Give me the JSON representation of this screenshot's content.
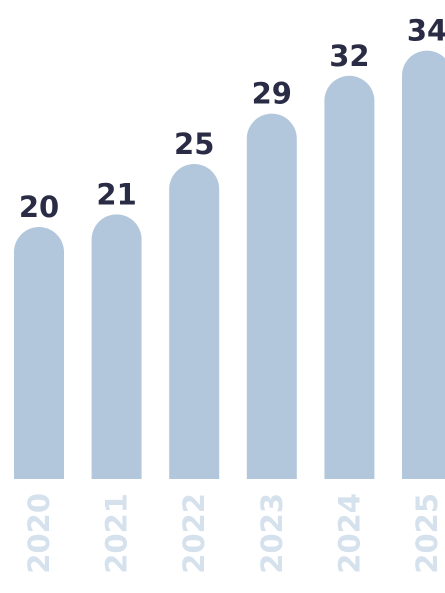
{
  "chart_data": {
    "type": "bar",
    "categories": [
      "2020",
      "2021",
      "2022",
      "2023",
      "2024",
      "2025"
    ],
    "values": [
      20,
      21,
      25,
      29,
      32,
      34
    ],
    "value_labels": [
      "20",
      "21",
      "25",
      "29",
      "32",
      "34"
    ],
    "title": "",
    "xlabel": "",
    "ylabel": "",
    "ylim": [
      0,
      34
    ],
    "grid": false,
    "legend": "none",
    "colors": {
      "bar": "#b3c7dc",
      "value_label": "#2a2c45",
      "category_label": "#d5e1ec"
    }
  }
}
